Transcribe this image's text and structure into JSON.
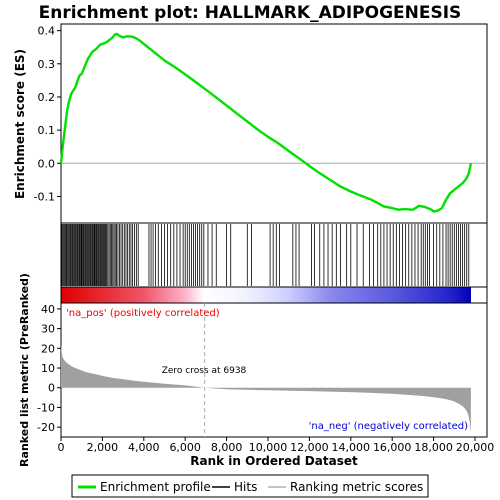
{
  "chart_data": {
    "type": "line",
    "title": "Enrichment plot: HALLMARK_ADIPOGENESIS",
    "xlabel": "Rank in Ordered Dataset",
    "x_range": [
      0,
      20000
    ],
    "x_ticks": [
      0,
      2000,
      4000,
      6000,
      8000,
      10000,
      12000,
      14000,
      16000,
      18000,
      20000
    ],
    "x_tick_labels": [
      "0",
      "2,000",
      "4,000",
      "6,000",
      "8,000",
      "10,000",
      "12,000",
      "14,000",
      "16,000",
      "18,000",
      "20,000"
    ],
    "n_genes": 19800,
    "panels": {
      "es": {
        "ylabel": "Enrichment score (ES)",
        "ylim": [
          -0.18,
          0.42
        ],
        "y_ticks": [
          -0.1,
          0.0,
          0.1,
          0.2,
          0.3,
          0.4
        ],
        "y_tick_labels": [
          "-0.1",
          "0.0",
          "0.1",
          "0.2",
          "0.3",
          "0.4"
        ],
        "series": [
          {
            "name": "Enrichment profile",
            "color": "#00e000",
            "x": [
              0,
              100,
              200,
              300,
              400,
              500,
              600,
              700,
              800,
              900,
              1000,
              1100,
              1200,
              1300,
              1400,
              1500,
              1600,
              1700,
              1800,
              1900,
              2000,
              2100,
              2200,
              2300,
              2400,
              2500,
              2600,
              2700,
              2800,
              2900,
              3000,
              3200,
              3400,
              3600,
              3800,
              4000,
              4500,
              5000,
              5500,
              6000,
              6500,
              7000,
              7500,
              8000,
              8500,
              9000,
              9500,
              10000,
              10500,
              11000,
              11500,
              12000,
              12500,
              13000,
              13500,
              14000,
              14500,
              15000,
              15300,
              15600,
              16000,
              16300,
              16600,
              17000,
              17300,
              17600,
              17900,
              18000,
              18200,
              18400,
              18600,
              18800,
              19000,
              19200,
              19400,
              19600,
              19700,
              19800
            ],
            "y": [
              0.0,
              0.06,
              0.11,
              0.16,
              0.19,
              0.21,
              0.22,
              0.23,
              0.25,
              0.265,
              0.27,
              0.285,
              0.3,
              0.315,
              0.325,
              0.335,
              0.34,
              0.345,
              0.352,
              0.358,
              0.36,
              0.362,
              0.365,
              0.37,
              0.375,
              0.38,
              0.388,
              0.39,
              0.385,
              0.382,
              0.38,
              0.383,
              0.382,
              0.378,
              0.37,
              0.36,
              0.335,
              0.31,
              0.29,
              0.268,
              0.245,
              0.222,
              0.198,
              0.174,
              0.15,
              0.126,
              0.102,
              0.08,
              0.06,
              0.037,
              0.015,
              -0.008,
              -0.03,
              -0.05,
              -0.07,
              -0.085,
              -0.098,
              -0.11,
              -0.12,
              -0.13,
              -0.135,
              -0.14,
              -0.138,
              -0.14,
              -0.128,
              -0.132,
              -0.14,
              -0.145,
              -0.143,
              -0.135,
              -0.11,
              -0.09,
              -0.08,
              -0.07,
              -0.06,
              -0.045,
              -0.03,
              0.0
            ]
          }
        ]
      },
      "hits": {
        "label": "Hits",
        "positions": [
          40,
          90,
          140,
          190,
          240,
          280,
          330,
          380,
          430,
          470,
          520,
          560,
          610,
          650,
          700,
          740,
          790,
          830,
          880,
          920,
          970,
          1010,
          1060,
          1100,
          1150,
          1190,
          1240,
          1280,
          1330,
          1370,
          1420,
          1460,
          1510,
          1550,
          1600,
          1640,
          1690,
          1730,
          1780,
          1820,
          1870,
          1910,
          1960,
          2000,
          2050,
          2100,
          2150,
          2200,
          2260,
          2320,
          2380,
          2440,
          2500,
          2560,
          2620,
          2680,
          2750,
          2820,
          2900,
          2980,
          3060,
          3140,
          3220,
          3300,
          3380,
          3460,
          3550,
          3640,
          3730,
          4250,
          4350,
          4450,
          4560,
          4700,
          4850,
          5000,
          5150,
          5300,
          5450,
          5600,
          5750,
          5900,
          6000,
          6100,
          6200,
          6300,
          6400,
          6500,
          6600,
          6700,
          6800,
          6900,
          7100,
          7300,
          7500,
          8000,
          8200,
          9000,
          9200,
          10100,
          10250,
          10400,
          10550,
          11200,
          11350,
          11500,
          12100,
          12250,
          12500,
          12700,
          12900,
          13100,
          13300,
          13500,
          13800,
          14000,
          14300,
          14600,
          14900,
          15100,
          15300,
          15450,
          15600,
          15750,
          15900,
          16050,
          16200,
          16350,
          16500,
          16650,
          16800,
          16950,
          17100,
          17250,
          17400,
          17500,
          17600,
          17700,
          17800,
          18000,
          18150,
          18300,
          18450,
          18600,
          18700,
          18800,
          18900,
          19000,
          19100,
          19200,
          19300,
          19400,
          19500,
          19600,
          19700
        ]
      },
      "ranked_metric": {
        "ylabel": "Ranked list metric (PreRanked)",
        "ylim": [
          -25,
          43
        ],
        "y_ticks": [
          -20,
          -10,
          0,
          10,
          20,
          30,
          40
        ],
        "y_tick_labels": [
          "-20",
          "-10",
          "0",
          "10",
          "20",
          "30",
          "40"
        ],
        "series": [
          {
            "name": "Ranking metric scores",
            "color": "#a0a0a0",
            "x": [
              0,
              50,
              100,
              200,
              300,
              500,
              800,
              1200,
              1600,
              2000,
              2500,
              3000,
              3500,
              4000,
              5000,
              6000,
              6938,
              8000,
              10000,
              12000,
              14000,
              15000,
              16000,
              17000,
              17500,
              18000,
              18500,
              18800,
              19000,
              19200,
              19400,
              19550,
              19650,
              19720,
              19780,
              19800
            ],
            "y": [
              22,
              17,
              15,
              13.5,
              12.5,
              11,
              9.5,
              8,
              7,
              6,
              5,
              4.3,
              3.6,
              3,
              2,
              1.2,
              0,
              -0.8,
              -1.3,
              -1.7,
              -2.2,
              -2.6,
              -3.1,
              -3.8,
              -4.2,
              -4.8,
              -5.6,
              -6.3,
              -7,
              -8,
              -9.3,
              -11,
              -13,
              -16,
              -20,
              -23
            ]
          }
        ],
        "annotations": [
          {
            "text": "'na_pos' (positively correlated)",
            "color": "#ee0000"
          },
          {
            "text": "Zero cross at 6938",
            "color": "#000000",
            "x": 6938
          },
          {
            "text": "'na_neg' (negatively correlated)",
            "color": "#0000dd"
          }
        ]
      }
    },
    "legend": {
      "placement": "bottom",
      "entries": [
        {
          "label": "Enrichment profile",
          "color": "#00e000"
        },
        {
          "label": "Hits",
          "color": "#000000"
        },
        {
          "label": "Ranking metric scores",
          "color": "#b0b0b0"
        }
      ]
    },
    "colors": {
      "pos_band": "#ee0000",
      "neutral_band": "#ffffff",
      "neg_band": "#0000cc",
      "zero_line": "#aaaaaa"
    }
  }
}
